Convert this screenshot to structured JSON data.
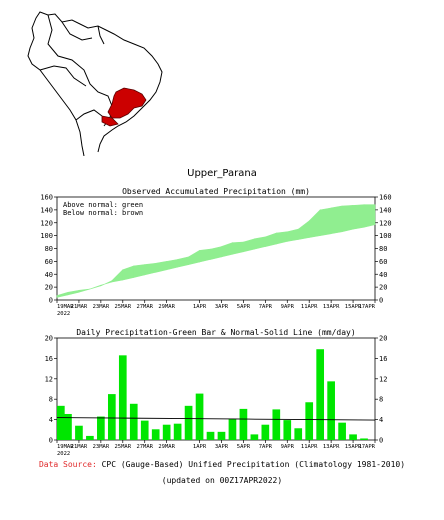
{
  "region_title": "Upper_Parana",
  "footer": {
    "source_label": "Data Source:",
    "source_text": "CPC (Gauge-Based) Unified Precipitation (Climatology 1981-2010)",
    "updated": "(updated on 00Z17APR2022)"
  },
  "colors": {
    "above": "#90ee90",
    "below": "#bc8f8f",
    "bars": "#00e600",
    "region": "#cc0000"
  },
  "chart_data": [
    {
      "type": "area",
      "title": "Observed Accumulated Precipitation (mm)",
      "legend": [
        "Above normal: green",
        "Below normal: brown"
      ],
      "x": [
        "19MAR",
        "20MAR",
        "21MAR",
        "22MAR",
        "23MAR",
        "24MAR",
        "25MAR",
        "26MAR",
        "27MAR",
        "28MAR",
        "29MAR",
        "30MAR",
        "31MAR",
        "1APR",
        "2APR",
        "3APR",
        "4APR",
        "5APR",
        "6APR",
        "7APR",
        "8APR",
        "9APR",
        "10APR",
        "11APR",
        "12APR",
        "13APR",
        "14APR",
        "15APR",
        "16APR",
        "17APR"
      ],
      "xticks": [
        "19MAR\n2022",
        "21MAR",
        "23MAR",
        "25MAR",
        "27MAR",
        "29MAR",
        "1APR",
        "3APR",
        "5APR",
        "7APR",
        "9APR",
        "11APR",
        "13APR",
        "15APR",
        "17APR"
      ],
      "series": [
        {
          "values": [
            7,
            12,
            15,
            17,
            22,
            30,
            47,
            53,
            55,
            57,
            60,
            63,
            67,
            77,
            79,
            83,
            89,
            90,
            95,
            98,
            104,
            106,
            110,
            123,
            140,
            143,
            146,
            147,
            148,
            148
          ]
        },
        {
          "values": [
            4,
            8,
            12,
            17,
            23,
            28,
            31,
            35,
            39,
            43,
            47,
            51,
            55,
            59,
            63,
            67,
            71,
            75,
            79,
            83,
            87,
            91,
            94,
            97,
            100,
            103,
            106,
            110,
            113,
            117
          ]
        }
      ],
      "ylim": [
        0,
        160
      ],
      "yticks": [
        0,
        20,
        40,
        60,
        80,
        100,
        120,
        140,
        160
      ]
    },
    {
      "type": "bar",
      "title": "Daily Precipitation-Green Bar & Normal-Solid Line (mm/day)",
      "x": [
        "19MAR",
        "20MAR",
        "21MAR",
        "22MAR",
        "23MAR",
        "24MAR",
        "25MAR",
        "26MAR",
        "27MAR",
        "28MAR",
        "29MAR",
        "30MAR",
        "31MAR",
        "1APR",
        "2APR",
        "3APR",
        "4APR",
        "5APR",
        "6APR",
        "7APR",
        "8APR",
        "9APR",
        "10APR",
        "11APR",
        "12APR",
        "13APR",
        "14APR",
        "15APR",
        "16APR",
        "17APR"
      ],
      "xticks": [
        "19MAR\n2022",
        "21MAR",
        "23MAR",
        "25MAR",
        "27MAR",
        "29MAR",
        "1APR",
        "3APR",
        "5APR",
        "7APR",
        "9APR",
        "11APR",
        "13APR",
        "15APR",
        "17APR"
      ],
      "values": [
        6.7,
        5.1,
        2.8,
        0.8,
        4.6,
        9.0,
        16.6,
        7.1,
        3.8,
        2.1,
        3.0,
        3.2,
        6.7,
        9.1,
        1.6,
        1.6,
        4.1,
        6.1,
        1.1,
        3.0,
        6.0,
        3.9,
        2.3,
        7.4,
        17.8,
        11.5,
        3.4,
        1.1,
        0.3,
        0
      ],
      "normal": [
        4.4,
        4.3,
        4.2,
        4.1,
        4.0,
        3.9
      ],
      "ylim": [
        0,
        20
      ],
      "yticks": [
        0,
        4,
        8,
        12,
        16,
        20
      ]
    }
  ]
}
